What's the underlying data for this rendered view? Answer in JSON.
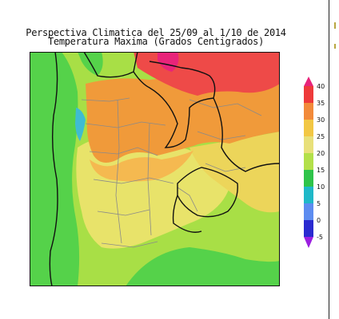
{
  "title": {
    "line1": "Perspectiva Climatica del 25/09 al 1/10 de 2014",
    "line2": "Temperatura Maxima (Grados Centigrados)"
  },
  "colorbar": {
    "labels": [
      "40",
      "35",
      "30",
      "25",
      "20",
      "15",
      "10",
      "5",
      "0",
      "-5"
    ],
    "colors": [
      "#e8247a",
      "#ee3a3a",
      "#f28a3a",
      "#f2c744",
      "#e8e07a",
      "#b3e04a",
      "#2fc44a",
      "#1fb8c8",
      "#5d8cf0",
      "#2a2ad0",
      "#9b1fe0"
    ]
  },
  "map_colors": {
    "green": "#55d24a",
    "light_green": "#a8df46",
    "yellow": "#e8e36a",
    "yellow_dark": "#ecd55a",
    "orange": "#f09a3a",
    "orange_light": "#f5b950",
    "red": "#ee4a48",
    "magenta": "#e8247a",
    "cyan": "#3fbcd2",
    "border_gray": "#8a8a8a"
  }
}
